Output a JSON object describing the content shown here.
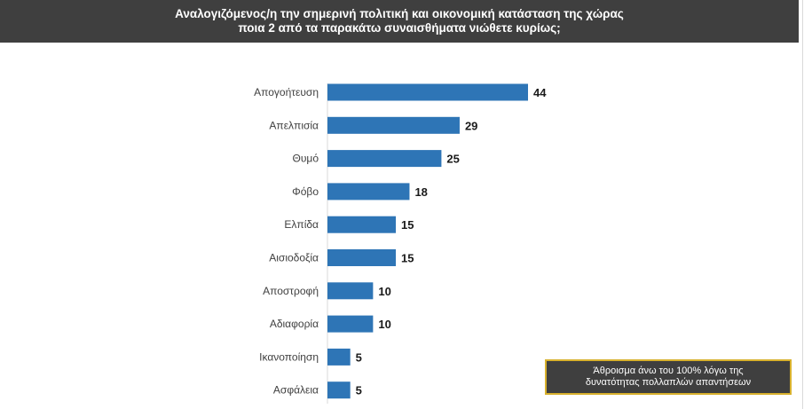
{
  "header": {
    "title_line1": "Αναλογιζόμενος/η την σημερινή πολιτική και οικονομική κατάσταση της χώρας",
    "title_line2": "ποια 2 από τα παρακάτω συναισθήματα νιώθετε κυρίως;"
  },
  "note": {
    "line1": "Άθροισμα άνω του 100% λόγω της",
    "line2": "δυνατότητας πολλαπλών απαντήσεων"
  },
  "colors": {
    "bar": "#2e75b6",
    "header_bg": "#3f3f3f",
    "note_border": "#d8b12d"
  },
  "chart_data": {
    "type": "bar",
    "orientation": "horizontal",
    "categories": [
      "Απογοήτευση",
      "Απελπισία",
      "Θυμό",
      "Φόβο",
      "Ελπίδα",
      "Αισιοδοξία",
      "Αποστροφή",
      "Αδιαφορία",
      "Ικανοποίηση",
      "Ασφάλεια"
    ],
    "values": [
      44,
      29,
      25,
      18,
      15,
      15,
      10,
      10,
      5,
      5
    ],
    "xlim": [
      0,
      44
    ],
    "grid": false,
    "legend": "none"
  }
}
